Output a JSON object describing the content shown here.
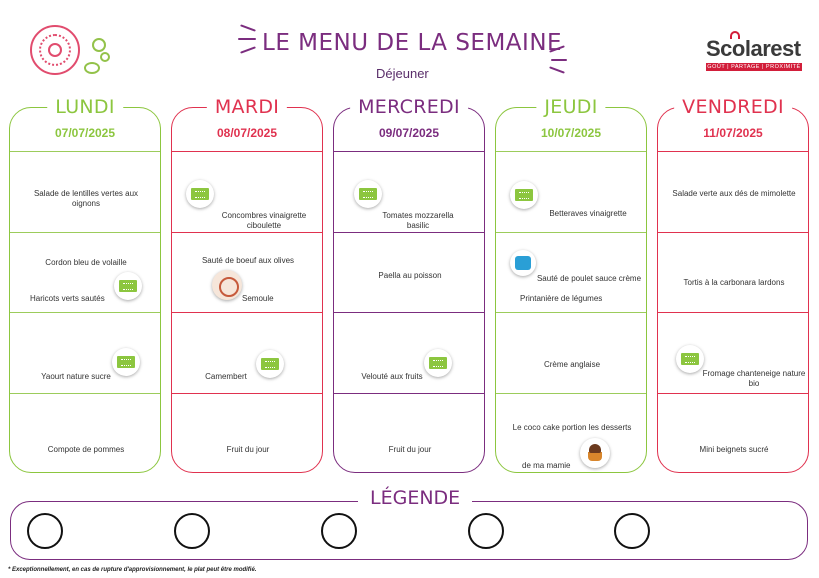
{
  "header": {
    "title": "LE MENU DE LA SEMAINE",
    "subtitle": "Déjeuner",
    "brand": "Scolarest",
    "brand_tagline": "GOÛT | PARTAGE | PROXIMITÉ"
  },
  "colors": {
    "green": "#8cc63f",
    "red": "#e0324f",
    "purple": "#7b2d7f",
    "line_green": "#9ccc5b"
  },
  "days": [
    {
      "name": "LUNDI",
      "date": "07/07/2025",
      "items": [
        {
          "text": "Salade de lentilles vertes aux oignons",
          "icon": ""
        },
        {
          "text": "Cordon bleu de volaille",
          "text2": "Haricots verts sautés",
          "icon": "bio-icon"
        },
        {
          "text": "Yaourt nature sucre",
          "icon": "bio-icon"
        },
        {
          "text": "Compote de pommes",
          "icon": ""
        }
      ]
    },
    {
      "name": "MARDI",
      "date": "08/07/2025",
      "items": [
        {
          "text": "Concombres vinaigrette ciboulette",
          "icon": "bio-icon"
        },
        {
          "text": "Sauté de boeuf aux olives",
          "text2": "Semoule",
          "icon": "label-rouge-icon"
        },
        {
          "text": "Camembert",
          "icon": "bio-icon"
        },
        {
          "text": "Fruit du jour",
          "icon": ""
        }
      ]
    },
    {
      "name": "MERCREDI",
      "date": "09/07/2025",
      "items": [
        {
          "text": "Tomates mozzarella basilic",
          "icon": "bio-icon"
        },
        {
          "text": "Paella au poisson",
          "icon": ""
        },
        {
          "text": "Velouté aux fruits",
          "icon": "bio-icon"
        },
        {
          "text": "Fruit du jour",
          "icon": ""
        }
      ]
    },
    {
      "name": "JEUDI",
      "date": "10/07/2025",
      "items": [
        {
          "text": "Betteraves vinaigrette",
          "icon": "bio-icon"
        },
        {
          "text": "Sauté de poulet sauce crème",
          "text2": "Printanière de légumes",
          "icon": "bleu-blanc-coeur-icon"
        },
        {
          "text": "Crème anglaise",
          "icon": ""
        },
        {
          "text": "Le coco cake portion les desserts",
          "text2": "de ma mamie",
          "icon": "cake-icon"
        }
      ]
    },
    {
      "name": "VENDREDI",
      "date": "11/07/2025",
      "items": [
        {
          "text": "Salade verte aux dés de mimolette",
          "icon": ""
        },
        {
          "text": "Tortis à la carbonara lardons",
          "icon": ""
        },
        {
          "text": "Fromage chanteneige nature bio",
          "icon": "bio-icon"
        },
        {
          "text": "Mini beignets sucré",
          "icon": ""
        }
      ]
    }
  ],
  "legend": {
    "title": "LÉGENDE"
  },
  "footnote": "* Exceptionnellement, en cas de rupture d'approvisionnement, le plat peut être modifié."
}
